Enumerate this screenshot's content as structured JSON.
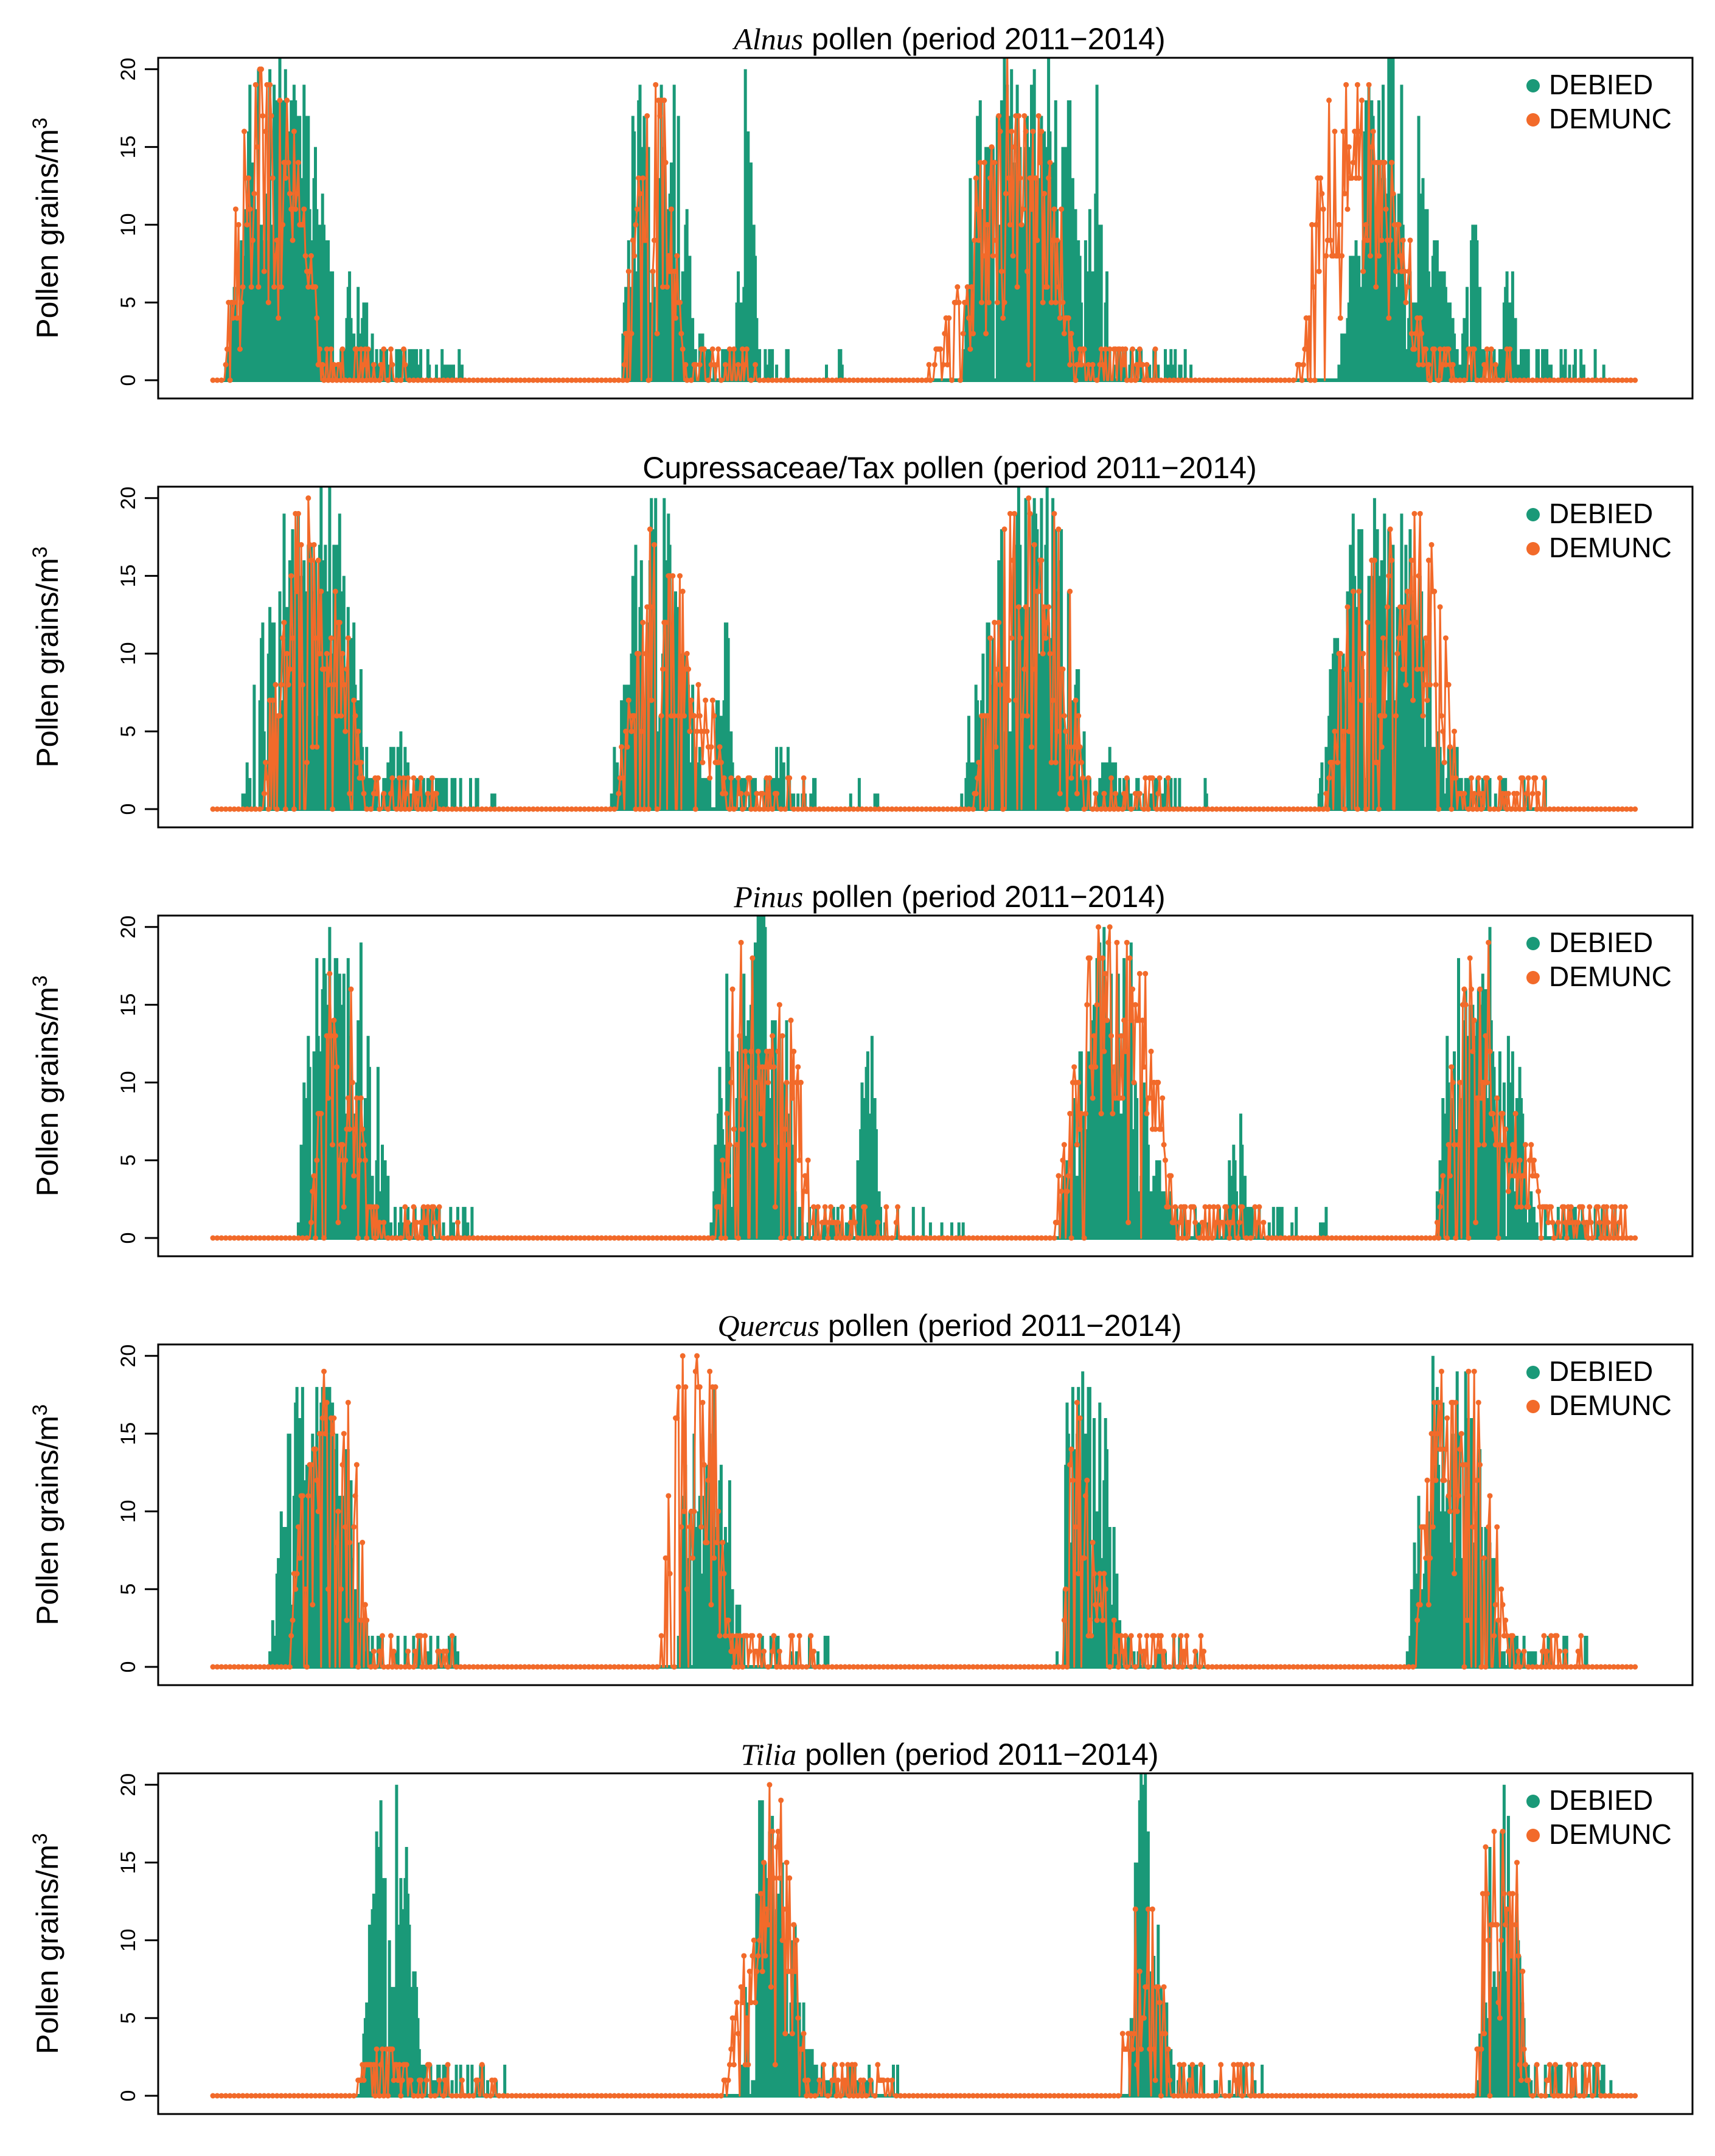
{
  "figure": {
    "colors": {
      "DEBIED": "#1a9978",
      "DEMUNC": "#f26a2a"
    },
    "ylabel_main": "Pollen grains/m",
    "ylabel_sup": "3"
  },
  "chart_data": [
    {
      "type": "line",
      "title_taxon": "Alnus",
      "title_rest": " pollen (period 2011−2014)",
      "ylim": [
        0,
        20.5
      ],
      "yticks": [
        0,
        5,
        10,
        15,
        20
      ],
      "legend": {
        "placement": "top-right",
        "entries": [
          "DEBIED",
          "DEMUNC"
        ]
      },
      "series": [
        {
          "name": "DEBIED",
          "style": "lines",
          "color": "#1a9978",
          "peaks": [
            [
              30,
              0.5,
              21
            ],
            [
              48,
              2,
              22
            ],
            [
              60,
              1.5,
              20
            ],
            [
              100,
              0.4,
              8
            ],
            [
              108,
              0.3,
              5
            ],
            [
              300,
              0.5,
              20
            ],
            [
              318,
              1,
              21
            ],
            [
              340,
              0.3,
              5
            ],
            [
              375,
              0.2,
              21
            ],
            [
              540,
              0.5,
              21
            ],
            [
              565,
              2,
              22
            ],
            [
              590,
              1.5,
              21
            ],
            [
              622,
              0.3,
              21
            ],
            [
              812,
              0.5,
              20
            ],
            [
              830,
              2,
              22
            ],
            [
              855,
              1,
              9
            ],
            [
              885,
              0.3,
              11
            ],
            [
              910,
              0.3,
              9
            ]
          ]
        },
        {
          "name": "DEMUNC",
          "style": "points",
          "color": "#f26a2a",
          "peaks": [
            [
              30,
              1,
              21
            ],
            [
              45,
              1.5,
              20
            ],
            [
              55,
              1,
              16
            ],
            [
              310,
              1,
              20
            ],
            [
              320,
              0.5,
              8
            ],
            [
              540,
              2,
              7
            ],
            [
              560,
              2,
              21
            ],
            [
              575,
              1.5,
              20
            ],
            [
              800,
              2,
              21
            ],
            [
              815,
              1.5,
              18
            ],
            [
              830,
              1,
              12
            ]
          ]
        }
      ]
    },
    {
      "type": "line",
      "title_taxon": "",
      "title_rest": "Cupressaceae/Tax pollen (period 2011−2014)",
      "ylim": [
        0,
        20.5
      ],
      "yticks": [
        0,
        5,
        10,
        15,
        20
      ],
      "legend": {
        "placement": "top-right",
        "entries": [
          "DEBIED",
          "DEMUNC"
        ]
      },
      "series": [
        {
          "name": "DEBIED",
          "style": "lines",
          "color": "#1a9978",
          "peaks": [
            [
              60,
              2,
              21
            ],
            [
              80,
              1.5,
              22
            ],
            [
              95,
              0.5,
              21
            ],
            [
              130,
              0.5,
              5
            ],
            [
              310,
              1.5,
              21
            ],
            [
              325,
              1,
              12
            ],
            [
              360,
              0.3,
              14
            ],
            [
              400,
              0.3,
              5
            ],
            [
              565,
              2,
              21
            ],
            [
              585,
              1.5,
              22
            ],
            [
              630,
              0.3,
              5
            ],
            [
              815,
              2,
              22
            ],
            [
              835,
              1.5,
              21
            ],
            [
              870,
              0.3,
              5
            ]
          ]
        },
        {
          "name": "DEMUNC",
          "style": "points",
          "color": "#f26a2a",
          "peaks": [
            [
              65,
              1.5,
              21
            ],
            [
              85,
              1,
              18
            ],
            [
              315,
              1.5,
              21
            ],
            [
              340,
              1,
              10
            ],
            [
              565,
              1.5,
              21
            ],
            [
              590,
              1,
              20
            ],
            [
              820,
              2,
              21
            ],
            [
              845,
              1.5,
              20
            ]
          ]
        }
      ]
    },
    {
      "type": "line",
      "title_taxon": "Pinus",
      "title_rest": " pollen (period 2011−2014)",
      "ylim": [
        0,
        20.5
      ],
      "yticks": [
        0,
        5,
        10,
        15,
        20
      ],
      "legend": {
        "placement": "top-right",
        "entries": [
          "DEBIED",
          "DEMUNC"
        ]
      },
      "series": [
        {
          "name": "DEBIED",
          "style": "lines",
          "color": "#1a9978",
          "peaks": [
            [
              80,
              1,
              21
            ],
            [
              95,
              1.5,
              21
            ],
            [
              105,
              0.5,
              9
            ],
            [
              370,
              1,
              21
            ],
            [
              385,
              1,
              22
            ],
            [
              400,
              0.5,
              15
            ],
            [
              460,
              0.3,
              15
            ],
            [
              625,
              1.5,
              20
            ],
            [
              640,
              1,
              21
            ],
            [
              665,
              0.5,
              5
            ],
            [
              720,
              0.3,
              10
            ],
            [
              880,
              1,
              21
            ],
            [
              895,
              1.5,
              21
            ],
            [
              915,
              0.5,
              12
            ]
          ]
        },
        {
          "name": "DEMUNC",
          "style": "points",
          "color": "#f26a2a",
          "peaks": [
            [
              90,
              1,
              21
            ],
            [
              100,
              0.5,
              11
            ],
            [
              375,
              1,
              21
            ],
            [
              400,
              1,
              16
            ],
            [
              630,
              2,
              21
            ],
            [
              645,
              1.5,
              20
            ],
            [
              660,
              1,
              8
            ],
            [
              890,
              1.5,
              21
            ],
            [
              905,
              1,
              10
            ],
            [
              925,
              0.3,
              7
            ]
          ]
        }
      ]
    },
    {
      "type": "line",
      "title_taxon": "Quercus",
      "title_rest": " pollen (period 2011−2014)",
      "ylim": [
        0,
        20.5
      ],
      "yticks": [
        0,
        5,
        10,
        15,
        20
      ],
      "legend": {
        "placement": "top-right",
        "entries": [
          "DEBIED",
          "DEMUNC"
        ]
      },
      "series": [
        {
          "name": "DEBIED",
          "style": "lines",
          "color": "#1a9978",
          "peaks": [
            [
              70,
              1.5,
              22
            ],
            [
              85,
              1,
              21
            ],
            [
              100,
              0.5,
              6
            ],
            [
              345,
              1,
              21
            ],
            [
              360,
              0.5,
              13
            ],
            [
              605,
              0.5,
              22
            ],
            [
              618,
              1,
              21
            ],
            [
              860,
              1,
              21
            ],
            [
              875,
              1.5,
              21
            ],
            [
              890,
              0.5,
              10
            ]
          ]
        },
        {
          "name": "DEMUNC",
          "style": "points",
          "color": "#f26a2a",
          "peaks": [
            [
              75,
              1,
              21
            ],
            [
              88,
              1,
              20
            ],
            [
              335,
              1,
              21
            ],
            [
              350,
              0.5,
              20
            ],
            [
              610,
              0.5,
              21
            ],
            [
              625,
              0.5,
              6
            ],
            [
              865,
              1,
              21
            ],
            [
              880,
              1.5,
              21
            ]
          ]
        }
      ]
    },
    {
      "type": "line",
      "title_taxon": "Tilia",
      "title_rest": " pollen (period 2011−2014)",
      "ylim": [
        0,
        20.5
      ],
      "yticks": [
        0,
        5,
        10,
        15,
        20
      ],
      "legend": {
        "placement": "top-right",
        "entries": [
          "DEBIED",
          "DEMUNC"
        ]
      },
      "series": [
        {
          "name": "DEBIED",
          "style": "lines",
          "color": "#1a9978",
          "peaks": [
            [
              125,
              1,
              22
            ],
            [
              135,
              0.5,
              16
            ],
            [
              390,
              1,
              21
            ],
            [
              400,
              1,
              13
            ],
            [
              415,
              0.5,
              5
            ],
            [
              655,
              0.5,
              22
            ],
            [
              665,
              0.5,
              8
            ],
            [
              905,
              0.8,
              21
            ],
            [
              915,
              0.5,
              8
            ]
          ]
        },
        {
          "name": "DEMUNC",
          "style": "points",
          "color": "#f26a2a",
          "peaks": [
            [
              120,
              1,
              4
            ],
            [
              380,
              1,
              10
            ],
            [
              395,
              1,
              21
            ],
            [
              405,
              0.5,
              6
            ],
            [
              650,
              0.5,
              13
            ],
            [
              660,
              0.5,
              14
            ],
            [
              900,
              0.5,
              21
            ],
            [
              910,
              0.5,
              20
            ]
          ]
        }
      ]
    }
  ]
}
